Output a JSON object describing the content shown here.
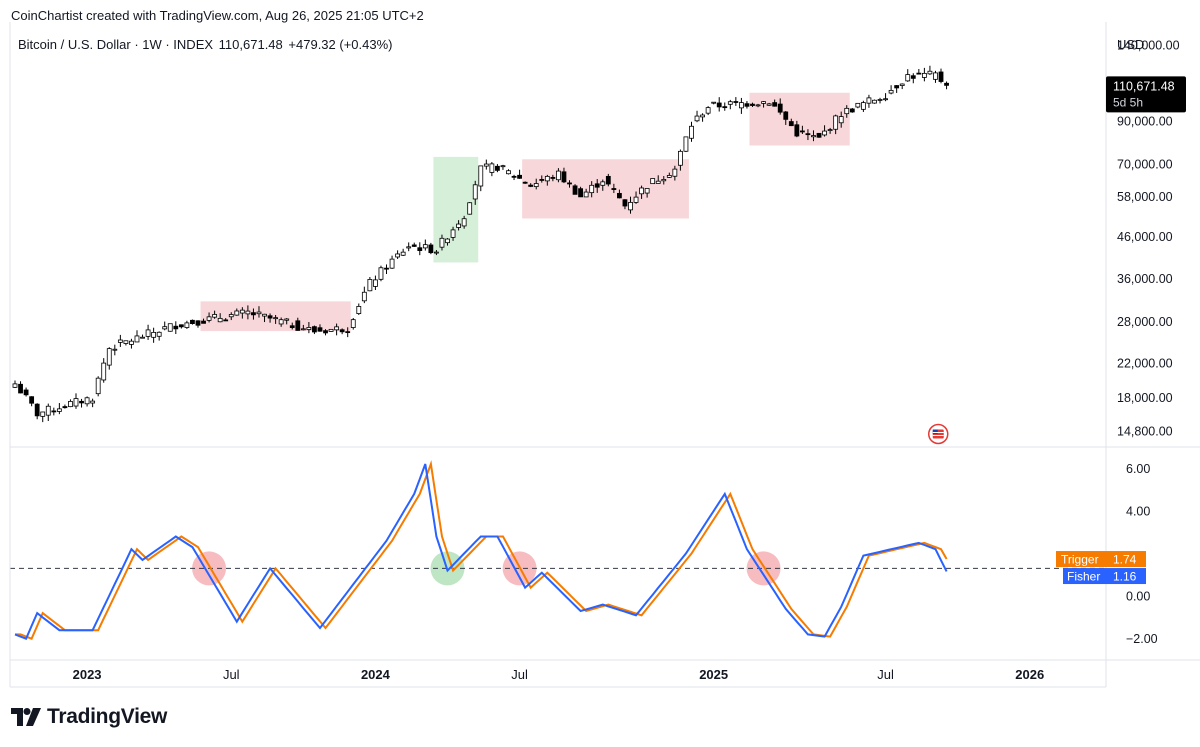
{
  "header": {
    "credit": "CoinChartist created with TradingView.com, Aug 26, 2025 21:05 UTC+2",
    "symbol": "Bitcoin / U.S. Dollar · 1W · INDEX",
    "price": "110,671.48",
    "change": "+479.32 (+0.43%)",
    "currency": "USD"
  },
  "price_axis": {
    "ticks": [
      "140,000.00",
      "90,000.00",
      "70,000.00",
      "58,000.00",
      "46,000.00",
      "36,000.00",
      "28,000.00",
      "22,000.00",
      "18,000.00",
      "14,800.00"
    ],
    "last_price": "110,671.48",
    "countdown": "5d 5h"
  },
  "indicator_axis": {
    "ticks": [
      "6.00",
      "4.00",
      "0.00",
      "−2.00"
    ],
    "trigger_label": "Trigger",
    "trigger_value": "1.74",
    "fisher_label": "Fisher",
    "fisher_value": "1.16"
  },
  "time_axis": {
    "labels": [
      "2023",
      "Jul",
      "2024",
      "Jul",
      "2025",
      "Jul",
      "2026"
    ]
  },
  "colors": {
    "up": "#ffffff",
    "down": "#000000",
    "fisher": "#2962ff",
    "trigger": "#f57c00",
    "red_zone": "#f8d7da",
    "green_zone": "#d6efd8",
    "red_circle": "#f4a6ab",
    "green_circle": "#a8dcb0"
  },
  "brand": {
    "name": "TradingView"
  },
  "chart_data": {
    "type": "candlestick",
    "title": "Bitcoin / U.S. Dollar · 1W · INDEX",
    "price_scale": "log",
    "price_range": [
      13500,
      160000
    ],
    "price_key_levels": [
      {
        "week": 0,
        "value": 19500
      },
      {
        "week": 4,
        "value": 16400
      },
      {
        "week": 14,
        "value": 18000
      },
      {
        "week": 17,
        "value": 24000
      },
      {
        "week": 29,
        "value": 27500
      },
      {
        "week": 42,
        "value": 29500
      },
      {
        "week": 54,
        "value": 26500
      },
      {
        "week": 60,
        "value": 27000
      },
      {
        "week": 64,
        "value": 35000
      },
      {
        "week": 71,
        "value": 43500
      },
      {
        "week": 76,
        "value": 42500
      },
      {
        "week": 81,
        "value": 52000
      },
      {
        "week": 84,
        "value": 68000
      },
      {
        "week": 87,
        "value": 69000
      },
      {
        "week": 93,
        "value": 62000
      },
      {
        "week": 98,
        "value": 66000
      },
      {
        "week": 102,
        "value": 58000
      },
      {
        "week": 106,
        "value": 64000
      },
      {
        "week": 110,
        "value": 55000
      },
      {
        "week": 114,
        "value": 62000
      },
      {
        "week": 119,
        "value": 68000
      },
      {
        "week": 122,
        "value": 88000
      },
      {
        "week": 125,
        "value": 98000
      },
      {
        "week": 136,
        "value": 101000
      },
      {
        "week": 141,
        "value": 84000
      },
      {
        "week": 145,
        "value": 81000
      },
      {
        "week": 149,
        "value": 94000
      },
      {
        "week": 157,
        "value": 105000
      },
      {
        "week": 161,
        "value": 117000
      },
      {
        "week": 166,
        "value": 117500
      },
      {
        "week": 168,
        "value": 110671
      }
    ],
    "last_week": 168,
    "last_close": 110671.48,
    "change": 479.32,
    "change_pct": 0.43,
    "zones": [
      {
        "type": "consolidation",
        "color": "red",
        "from_week": 34,
        "to_week": 60,
        "low": 26500,
        "high": 31500
      },
      {
        "type": "breakout",
        "color": "green",
        "from_week": 76,
        "to_week": 83,
        "low": 39500,
        "high": 73000
      },
      {
        "type": "consolidation",
        "color": "red",
        "from_week": 92,
        "to_week": 121,
        "low": 51000,
        "high": 72000
      },
      {
        "type": "consolidation",
        "color": "red",
        "from_week": 133,
        "to_week": 150,
        "low": 78000,
        "high": 106000
      }
    ],
    "indicator": {
      "name": "Fisher Transform",
      "range": [
        -3.0,
        7.0
      ],
      "reference_line": 1.3,
      "fisher_key_levels": [
        {
          "week": 0,
          "value": -1.8
        },
        {
          "week": 2,
          "value": -2.0
        },
        {
          "week": 4,
          "value": -0.8
        },
        {
          "week": 8,
          "value": -1.6
        },
        {
          "week": 14,
          "value": -1.6
        },
        {
          "week": 21,
          "value": 2.2
        },
        {
          "week": 23,
          "value": 1.7
        },
        {
          "week": 29,
          "value": 2.8
        },
        {
          "week": 32,
          "value": 2.3
        },
        {
          "week": 40,
          "value": -1.2
        },
        {
          "week": 46,
          "value": 1.3
        },
        {
          "week": 55,
          "value": -1.5
        },
        {
          "week": 67,
          "value": 2.6
        },
        {
          "week": 72,
          "value": 4.8
        },
        {
          "week": 74,
          "value": 6.2
        },
        {
          "week": 76,
          "value": 2.8
        },
        {
          "week": 78,
          "value": 1.2
        },
        {
          "week": 84,
          "value": 2.8
        },
        {
          "week": 87,
          "value": 2.8
        },
        {
          "week": 92,
          "value": 0.4
        },
        {
          "week": 95,
          "value": 1.1
        },
        {
          "week": 102,
          "value": -0.7
        },
        {
          "week": 106,
          "value": -0.4
        },
        {
          "week": 112,
          "value": -0.9
        },
        {
          "week": 121,
          "value": 2.0
        },
        {
          "week": 128,
          "value": 4.8
        },
        {
          "week": 132,
          "value": 2.2
        },
        {
          "week": 139,
          "value": -0.6
        },
        {
          "week": 143,
          "value": -1.8
        },
        {
          "week": 146,
          "value": -1.9
        },
        {
          "week": 149,
          "value": -0.5
        },
        {
          "week": 153,
          "value": 1.9
        },
        {
          "week": 158,
          "value": 2.2
        },
        {
          "week": 163,
          "value": 2.5
        },
        {
          "week": 166,
          "value": 2.2
        },
        {
          "week": 168,
          "value": 1.16
        }
      ],
      "trigger_lag_weeks": 1,
      "fisher_last": 1.16,
      "trigger_last": 1.74,
      "signal_circles": [
        {
          "week": 35,
          "value": 1.3,
          "color": "red"
        },
        {
          "week": 78,
          "value": 1.3,
          "color": "green"
        },
        {
          "week": 91,
          "value": 1.3,
          "color": "red"
        },
        {
          "week": 135,
          "value": 1.3,
          "color": "red"
        }
      ]
    },
    "x_axis": {
      "first_week_date": "2022-11-07",
      "ticks": [
        {
          "label": "2023",
          "week": 13
        },
        {
          "label": "Jul",
          "week": 39
        },
        {
          "label": "2024",
          "week": 65
        },
        {
          "label": "Jul",
          "week": 91
        },
        {
          "label": "2025",
          "week": 126
        },
        {
          "label": "Jul",
          "week": 157
        },
        {
          "label": "2026",
          "week": 183
        }
      ]
    }
  }
}
